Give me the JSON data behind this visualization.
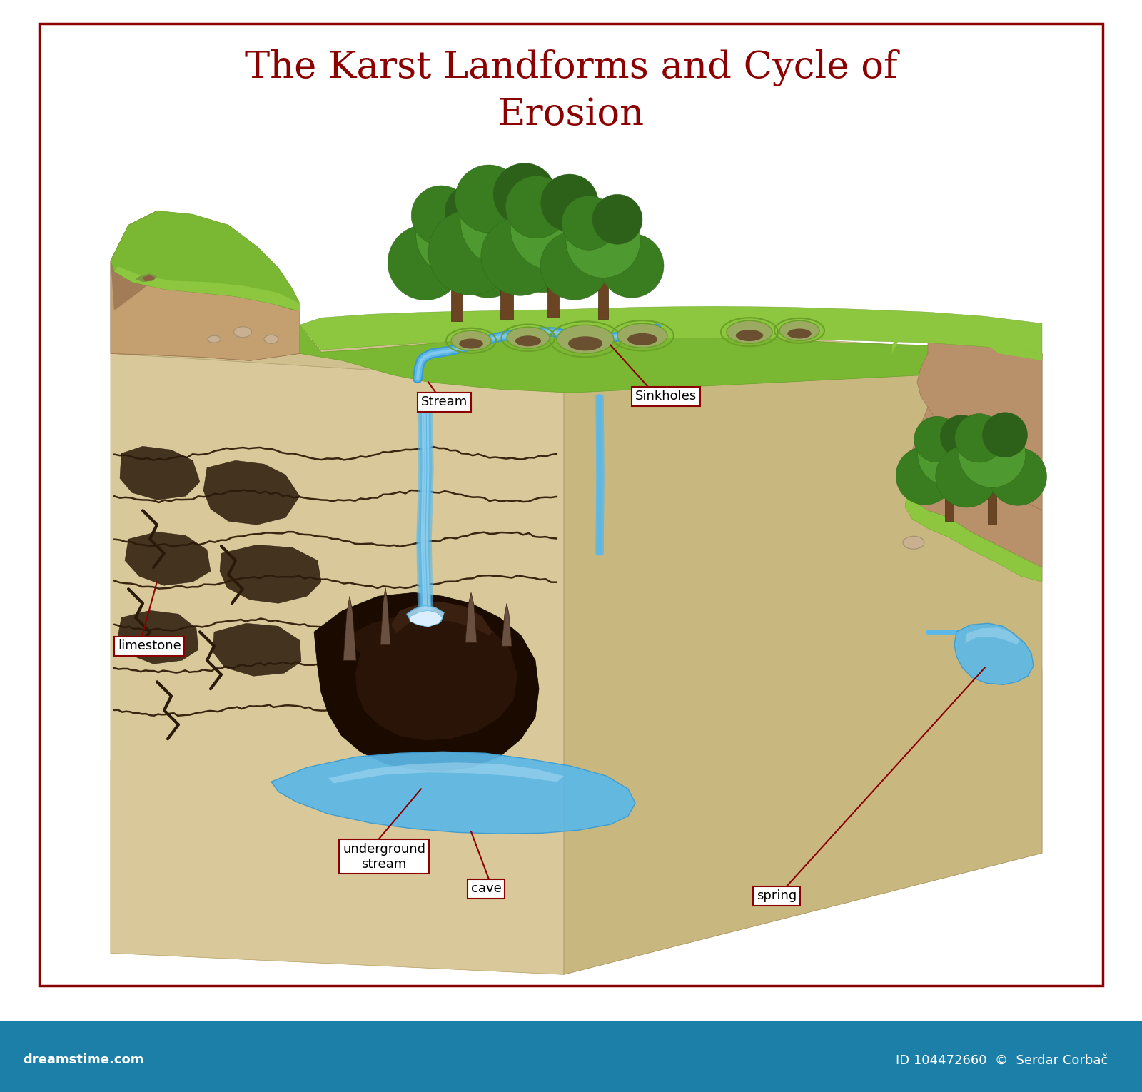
{
  "title_line1": "The Karst Landforms and Cycle of",
  "title_line2": "Erosion",
  "title_color": "#8B0000",
  "title_fontsize": 38,
  "border_color": "#8B0000",
  "border_linewidth": 2.5,
  "footer_color": "#1C7FA8",
  "footer_text_left": "dreamstime.com",
  "footer_fontsize": 13,
  "bg_color": "#FFFFFF",
  "label_border_color": "#8B0000",
  "label_text_color": "#000000",
  "label_line_color": "#8B0000",
  "label_fontsize": 13,
  "colors": {
    "limestone_top": "#D4C5A2",
    "limestone_front": "#C8B890",
    "limestone_side": "#BCA878",
    "limestone_bottom": "#E0D0B0",
    "grass_bright": "#8DC63F",
    "grass_mid": "#7AB833",
    "grass_dark": "#6A9F28",
    "cliff_brown": "#B8916A",
    "cliff_dark": "#9A7550",
    "cliff_shadow": "#8B6545",
    "water_blue": "#5BB8E8",
    "water_light": "#A8D8F0",
    "water_dark": "#3A9AD0",
    "cave_dark": "#2C1A10",
    "cave_mid": "#4A2F20",
    "crack_dark": "#3A2510",
    "tree_trunk": "#6B4423",
    "tree_green1": "#3A7D20",
    "tree_green2": "#4E9A30",
    "tree_green3": "#2D6018",
    "rock_tan": "#C4A882",
    "rock_shadow": "#A08860"
  }
}
